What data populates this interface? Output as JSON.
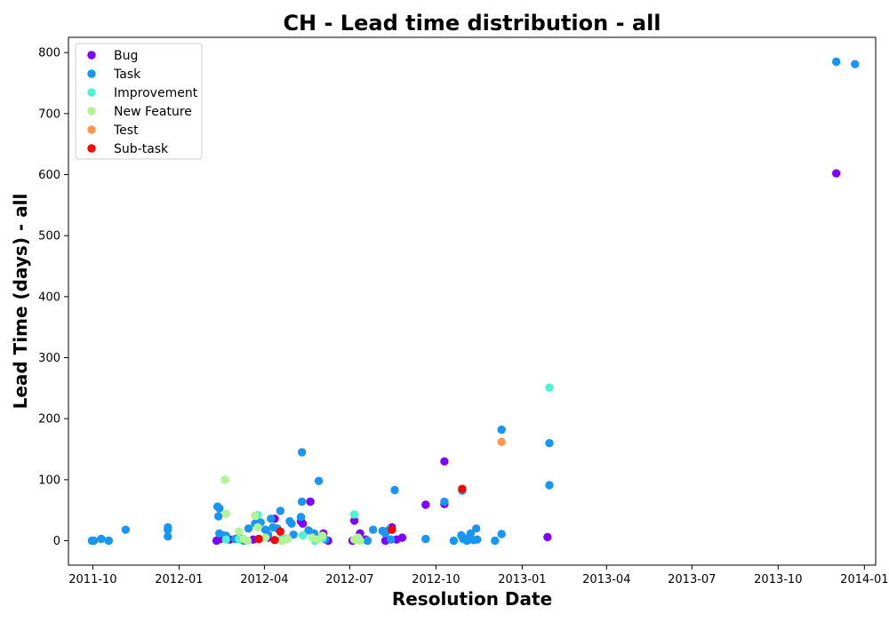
{
  "chart_data": {
    "type": "scatter",
    "title": "CH - Lead time distribution - all",
    "xlabel": "Resolution Date",
    "ylabel": "Lead Time (days) - all",
    "x_type": "date",
    "xlim": [
      "2011-09-05",
      "2014-01-13"
    ],
    "ylim": [
      -40,
      825
    ],
    "x_ticks": [
      "2011-10-01",
      "2012-01-01",
      "2012-04-01",
      "2012-07-01",
      "2012-10-01",
      "2013-01-01",
      "2013-04-01",
      "2013-07-01",
      "2013-10-01",
      "2014-01-01"
    ],
    "x_tick_labels": [
      "2011-10",
      "2012-01",
      "2012-04",
      "2012-07",
      "2012-10",
      "2013-01",
      "2013-04",
      "2013-07",
      "2013-10",
      "2014-01"
    ],
    "y_ticks": [
      0,
      100,
      200,
      300,
      400,
      500,
      600,
      700,
      800
    ],
    "grid": false,
    "legend_position": "upper-left",
    "series": [
      {
        "name": "Bug",
        "color": "#8000ff",
        "points": [
          [
            "2012-02-10",
            0
          ],
          [
            "2012-02-14",
            3
          ],
          [
            "2012-02-18",
            8
          ],
          [
            "2012-02-24",
            2
          ],
          [
            "2012-03-05",
            5
          ],
          [
            "2012-03-20",
            2
          ],
          [
            "2012-04-05",
            5
          ],
          [
            "2012-04-12",
            36
          ],
          [
            "2012-04-25",
            3
          ],
          [
            "2012-05-10",
            32
          ],
          [
            "2012-05-12",
            28
          ],
          [
            "2012-05-20",
            64
          ],
          [
            "2012-05-25",
            3
          ],
          [
            "2012-06-03",
            12
          ],
          [
            "2012-06-08",
            0
          ],
          [
            "2012-07-04",
            0
          ],
          [
            "2012-07-06",
            33
          ],
          [
            "2012-07-12",
            12
          ],
          [
            "2012-07-18",
            2
          ],
          [
            "2012-08-08",
            0
          ],
          [
            "2012-08-15",
            22
          ],
          [
            "2012-08-20",
            2
          ],
          [
            "2012-08-26",
            5
          ],
          [
            "2012-09-20",
            59
          ],
          [
            "2012-10-10",
            60
          ],
          [
            "2012-10-10",
            130
          ],
          [
            "2012-10-29",
            84
          ],
          [
            "2013-01-28",
            6
          ],
          [
            "2013-12-02",
            602
          ]
        ]
      },
      {
        "name": "Task",
        "color": "#1996f3",
        "points": [
          [
            "2011-09-30",
            0
          ],
          [
            "2011-10-02",
            0
          ],
          [
            "2011-10-10",
            3
          ],
          [
            "2011-10-18",
            0
          ],
          [
            "2011-11-05",
            18
          ],
          [
            "2011-12-20",
            7
          ],
          [
            "2011-12-20",
            18
          ],
          [
            "2011-12-20",
            22
          ],
          [
            "2012-02-11",
            56
          ],
          [
            "2012-02-12",
            40
          ],
          [
            "2012-02-13",
            53
          ],
          [
            "2012-02-13",
            12
          ],
          [
            "2012-02-20",
            8
          ],
          [
            "2012-03-01",
            3
          ],
          [
            "2012-03-10",
            0
          ],
          [
            "2012-03-15",
            20
          ],
          [
            "2012-03-22",
            28
          ],
          [
            "2012-03-28",
            30
          ],
          [
            "2012-04-02",
            18
          ],
          [
            "2012-04-05",
            10
          ],
          [
            "2012-04-08",
            36
          ],
          [
            "2012-04-10",
            22
          ],
          [
            "2012-04-15",
            20
          ],
          [
            "2012-04-18",
            49
          ],
          [
            "2012-04-28",
            32
          ],
          [
            "2012-04-30",
            28
          ],
          [
            "2012-05-02",
            10
          ],
          [
            "2012-05-10",
            39
          ],
          [
            "2012-05-11",
            145
          ],
          [
            "2012-05-11",
            64
          ],
          [
            "2012-05-18",
            17
          ],
          [
            "2012-05-24",
            12
          ],
          [
            "2012-05-29",
            98
          ],
          [
            "2012-06-01",
            6
          ],
          [
            "2012-06-05",
            2
          ],
          [
            "2012-07-10",
            4
          ],
          [
            "2012-07-20",
            0
          ],
          [
            "2012-07-26",
            18
          ],
          [
            "2012-08-05",
            16
          ],
          [
            "2012-08-08",
            12
          ],
          [
            "2012-08-12",
            18
          ],
          [
            "2012-08-14",
            2
          ],
          [
            "2012-08-18",
            83
          ],
          [
            "2012-09-20",
            3
          ],
          [
            "2012-10-10",
            64
          ],
          [
            "2012-10-20",
            0
          ],
          [
            "2012-10-28",
            9
          ],
          [
            "2012-10-29",
            82
          ],
          [
            "2012-10-30",
            3
          ],
          [
            "2012-11-03",
            0
          ],
          [
            "2012-11-05",
            5
          ],
          [
            "2012-11-07",
            12
          ],
          [
            "2012-11-10",
            1
          ],
          [
            "2012-11-13",
            20
          ],
          [
            "2012-11-14",
            2
          ],
          [
            "2012-12-03",
            0
          ],
          [
            "2012-12-10",
            182
          ],
          [
            "2012-12-10",
            11
          ],
          [
            "2013-01-30",
            160
          ],
          [
            "2013-01-30",
            91
          ],
          [
            "2013-12-02",
            785
          ],
          [
            "2013-12-22",
            781
          ]
        ]
      },
      {
        "name": "Improvement",
        "color": "#4df3ce",
        "points": [
          [
            "2012-02-20",
            2
          ],
          [
            "2012-03-05",
            3
          ],
          [
            "2012-03-25",
            42
          ],
          [
            "2012-04-20",
            5
          ],
          [
            "2012-05-12",
            9
          ],
          [
            "2012-05-25",
            0
          ],
          [
            "2012-06-02",
            4
          ],
          [
            "2012-07-06",
            43
          ],
          [
            "2013-01-30",
            251
          ]
        ]
      },
      {
        "name": "New Feature",
        "color": "#b2f396",
        "points": [
          [
            "2012-02-19",
            100
          ],
          [
            "2012-02-20",
            44
          ],
          [
            "2012-03-05",
            15
          ],
          [
            "2012-03-10",
            3
          ],
          [
            "2012-03-14",
            0
          ],
          [
            "2012-03-22",
            41
          ],
          [
            "2012-03-25",
            22
          ],
          [
            "2012-04-02",
            5
          ],
          [
            "2012-04-20",
            0
          ],
          [
            "2012-04-26",
            3
          ],
          [
            "2012-05-22",
            5
          ],
          [
            "2012-05-28",
            2
          ],
          [
            "2012-06-02",
            8
          ],
          [
            "2012-07-06",
            2
          ],
          [
            "2012-07-10",
            5
          ],
          [
            "2012-07-12",
            0
          ]
        ]
      },
      {
        "name": "Test",
        "color": "#ff964f",
        "points": [
          [
            "2012-12-10",
            162
          ]
        ]
      },
      {
        "name": "Sub-task",
        "color": "#ff0000",
        "points": [
          [
            "2012-03-26",
            3
          ],
          [
            "2012-04-12",
            1
          ],
          [
            "2012-04-18",
            15
          ],
          [
            "2012-08-15",
            18
          ],
          [
            "2012-10-29",
            85
          ]
        ]
      }
    ]
  }
}
